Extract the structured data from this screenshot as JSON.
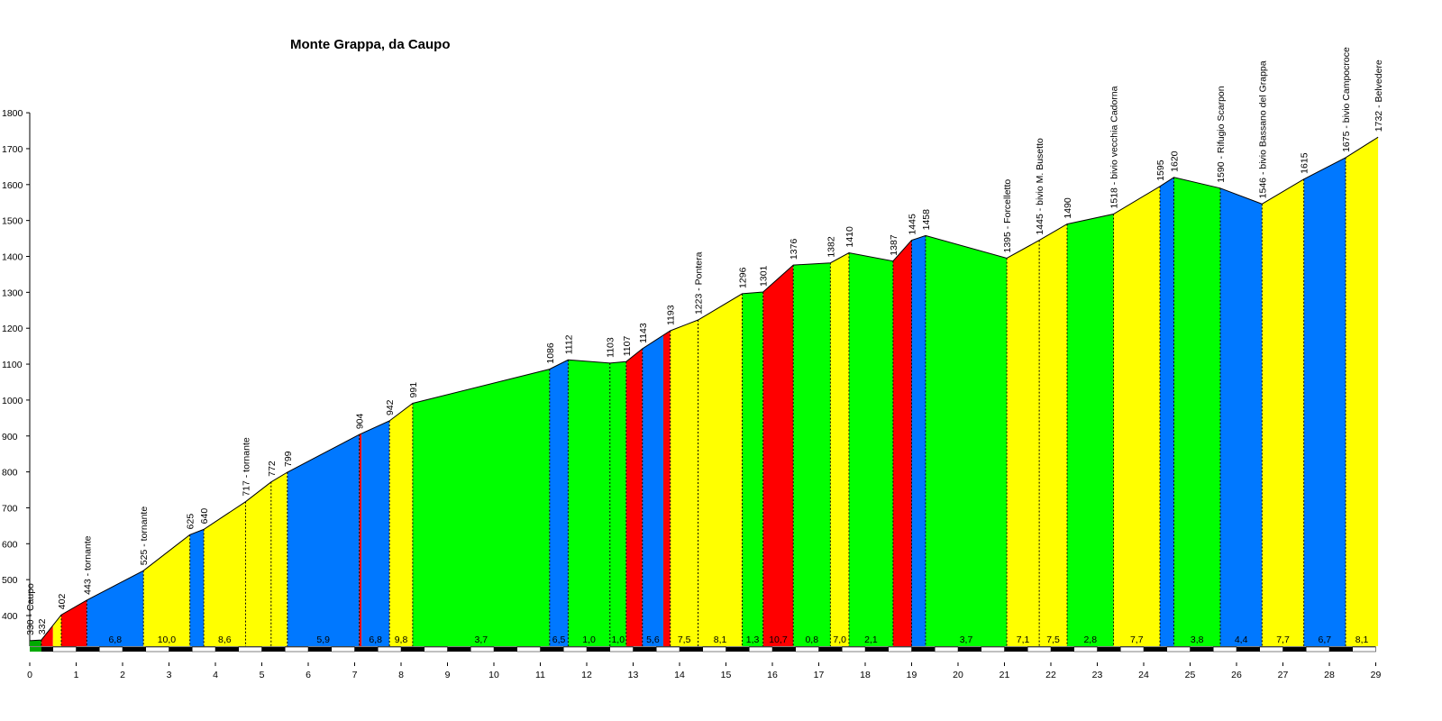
{
  "chart_data": {
    "type": "area",
    "title": "Monte Grappa, da Caupo",
    "xlabel": "",
    "ylabel": "",
    "xlim": [
      0,
      29
    ],
    "ylim": [
      310,
      1800
    ],
    "yticks": [
      400,
      500,
      600,
      700,
      800,
      900,
      1000,
      1100,
      1200,
      1300,
      1400,
      1500,
      1600,
      1700,
      1800
    ],
    "xticks": [
      0,
      1,
      2,
      3,
      4,
      5,
      6,
      7,
      8,
      9,
      10,
      11,
      12,
      13,
      14,
      15,
      16,
      17,
      18,
      19,
      20,
      21,
      22,
      23,
      24,
      25,
      26,
      27,
      28,
      29
    ],
    "grade_colors": {
      "flat": "#00aa00",
      "blue": "#0078ff",
      "yellow": "#ffff00",
      "green": "#00ff00",
      "red": "#ff0000"
    },
    "points": [
      {
        "x": 0.0,
        "y": 330,
        "label": "330 - Caupo"
      },
      {
        "x": 0.25,
        "y": 332,
        "label": "332"
      },
      {
        "x": 0.68,
        "y": 402,
        "label": "402"
      },
      {
        "x": 1.23,
        "y": 443,
        "label": "443 - tornante"
      },
      {
        "x": 2.45,
        "y": 525,
        "label": "525 - tornante"
      },
      {
        "x": 3.45,
        "y": 625,
        "label": "625"
      },
      {
        "x": 3.75,
        "y": 640,
        "label": "640"
      },
      {
        "x": 4.65,
        "y": 717,
        "label": "717 - tornante"
      },
      {
        "x": 5.2,
        "y": 772,
        "label": "772"
      },
      {
        "x": 5.55,
        "y": 799,
        "label": "799"
      },
      {
        "x": 7.1,
        "y": 904,
        "label": "904"
      },
      {
        "x": 7.75,
        "y": 942,
        "label": "942"
      },
      {
        "x": 8.25,
        "y": 991,
        "label": "991"
      },
      {
        "x": 11.2,
        "y": 1086,
        "label": "1086"
      },
      {
        "x": 11.6,
        "y": 1112,
        "label": "1112"
      },
      {
        "x": 12.5,
        "y": 1103,
        "label": "1103"
      },
      {
        "x": 12.85,
        "y": 1107,
        "label": "1107"
      },
      {
        "x": 13.2,
        "y": 1143,
        "label": "1143"
      },
      {
        "x": 13.8,
        "y": 1193,
        "label": "1193"
      },
      {
        "x": 14.4,
        "y": 1223,
        "label": "1223 - Pontera"
      },
      {
        "x": 15.35,
        "y": 1296,
        "label": "1296"
      },
      {
        "x": 15.8,
        "y": 1301,
        "label": "1301"
      },
      {
        "x": 16.45,
        "y": 1376,
        "label": "1376"
      },
      {
        "x": 17.25,
        "y": 1382,
        "label": "1382"
      },
      {
        "x": 17.65,
        "y": 1410,
        "label": "1410"
      },
      {
        "x": 18.6,
        "y": 1387,
        "label": "1387"
      },
      {
        "x": 19.0,
        "y": 1445,
        "label": "1445"
      },
      {
        "x": 19.3,
        "y": 1458,
        "label": "1458"
      },
      {
        "x": 21.05,
        "y": 1395,
        "label": "1395 - Forcelletto"
      },
      {
        "x": 21.75,
        "y": 1445,
        "label": "1445 - bivio M. Busetto"
      },
      {
        "x": 22.35,
        "y": 1490,
        "label": "1490"
      },
      {
        "x": 23.35,
        "y": 1518,
        "label": "1518 - bivio vecchia Cadorna"
      },
      {
        "x": 24.35,
        "y": 1595,
        "label": "1595"
      },
      {
        "x": 24.65,
        "y": 1620,
        "label": "1620"
      },
      {
        "x": 25.65,
        "y": 1590,
        "label": "1590 - Rifugio Scarpon"
      },
      {
        "x": 26.55,
        "y": 1546,
        "label": "1546 - bivio Bassano del Grappa"
      },
      {
        "x": 27.45,
        "y": 1615,
        "label": "1615"
      },
      {
        "x": 28.35,
        "y": 1675,
        "label": "1675 - bivio Campocroce"
      },
      {
        "x": 29.05,
        "y": 1732,
        "label": "1732 - Belvedere"
      }
    ],
    "segments": [
      {
        "from": 0.0,
        "to": 0.25,
        "grade": "",
        "color": "flat"
      },
      {
        "from": 0.25,
        "to": 0.5,
        "grade": "",
        "color": "red"
      },
      {
        "from": 0.5,
        "to": 0.68,
        "grade": "",
        "color": "yellow"
      },
      {
        "from": 0.68,
        "to": 1.23,
        "grade": "",
        "color": "red"
      },
      {
        "from": 1.23,
        "to": 2.45,
        "grade": "6,8",
        "color": "blue"
      },
      {
        "from": 2.45,
        "to": 3.45,
        "grade": "10,0",
        "color": "yellow"
      },
      {
        "from": 3.45,
        "to": 3.75,
        "grade": "",
        "color": "blue"
      },
      {
        "from": 3.75,
        "to": 4.65,
        "grade": "8,6",
        "color": "yellow"
      },
      {
        "from": 4.65,
        "to": 5.2,
        "grade": "",
        "color": "yellow"
      },
      {
        "from": 5.2,
        "to": 5.55,
        "grade": "",
        "color": "yellow"
      },
      {
        "from": 5.55,
        "to": 7.1,
        "grade": "5,9",
        "color": "blue"
      },
      {
        "from": 7.1,
        "to": 7.15,
        "grade": "",
        "color": "red"
      },
      {
        "from": 7.15,
        "to": 7.75,
        "grade": "6,8",
        "color": "blue"
      },
      {
        "from": 7.75,
        "to": 8.25,
        "grade": "9,8",
        "color": "yellow"
      },
      {
        "from": 8.25,
        "to": 11.2,
        "grade": "3,7",
        "color": "green"
      },
      {
        "from": 11.2,
        "to": 11.6,
        "grade": "6,5",
        "color": "blue"
      },
      {
        "from": 11.6,
        "to": 12.5,
        "grade": "1,0",
        "color": "green"
      },
      {
        "from": 12.5,
        "to": 12.85,
        "grade": "1,0",
        "color": "green"
      },
      {
        "from": 12.85,
        "to": 13.2,
        "grade": "",
        "color": "red"
      },
      {
        "from": 13.2,
        "to": 13.65,
        "grade": "5,6",
        "color": "blue"
      },
      {
        "from": 13.65,
        "to": 13.8,
        "grade": "",
        "color": "red"
      },
      {
        "from": 13.8,
        "to": 14.4,
        "grade": "7,5",
        "color": "yellow"
      },
      {
        "from": 14.4,
        "to": 15.35,
        "grade": "8,1",
        "color": "yellow"
      },
      {
        "from": 15.35,
        "to": 15.8,
        "grade": "1,3",
        "color": "green"
      },
      {
        "from": 15.8,
        "to": 16.45,
        "grade": "10,7",
        "color": "red"
      },
      {
        "from": 16.45,
        "to": 17.25,
        "grade": "0,8",
        "color": "green"
      },
      {
        "from": 17.25,
        "to": 17.65,
        "grade": "7,0",
        "color": "yellow"
      },
      {
        "from": 17.65,
        "to": 18.6,
        "grade": "2,1",
        "color": "green"
      },
      {
        "from": 18.6,
        "to": 19.0,
        "grade": "",
        "color": "red"
      },
      {
        "from": 19.0,
        "to": 19.3,
        "grade": "",
        "color": "blue"
      },
      {
        "from": 19.3,
        "to": 21.05,
        "grade": "3,7",
        "color": "green"
      },
      {
        "from": 21.05,
        "to": 21.75,
        "grade": "7,1",
        "color": "yellow"
      },
      {
        "from": 21.75,
        "to": 22.35,
        "grade": "7,5",
        "color": "yellow"
      },
      {
        "from": 22.35,
        "to": 23.35,
        "grade": "2,8",
        "color": "green"
      },
      {
        "from": 23.35,
        "to": 24.35,
        "grade": "7,7",
        "color": "yellow"
      },
      {
        "from": 24.35,
        "to": 24.65,
        "grade": "",
        "color": "blue"
      },
      {
        "from": 24.65,
        "to": 25.65,
        "grade": "3,8",
        "color": "green"
      },
      {
        "from": 25.65,
        "to": 26.55,
        "grade": "4,4",
        "color": "blue"
      },
      {
        "from": 26.55,
        "to": 27.45,
        "grade": "7,7",
        "color": "yellow"
      },
      {
        "from": 27.45,
        "to": 28.35,
        "grade": "6,7",
        "color": "blue"
      },
      {
        "from": 28.35,
        "to": 29.05,
        "grade": "8,1",
        "color": "yellow"
      }
    ]
  }
}
